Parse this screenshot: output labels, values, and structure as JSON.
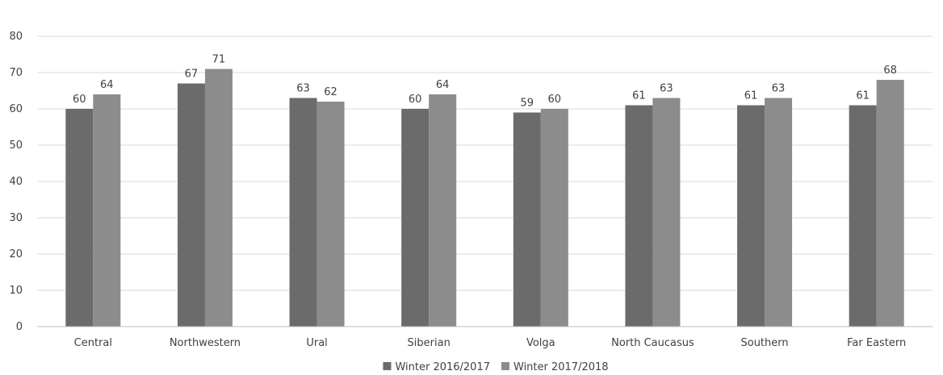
{
  "chart_data": {
    "type": "bar",
    "categories": [
      "Central",
      "Northwestern",
      "Ural",
      "Siberian",
      "Volga",
      "North Caucasus",
      "Southern",
      "Far Eastern"
    ],
    "series": [
      {
        "name": "Winter 2016/2017",
        "values": [
          60,
          67,
          63,
          60,
          59,
          61,
          61,
          61
        ],
        "color": "#6b6b6b"
      },
      {
        "name": "Winter 2017/2018",
        "values": [
          64,
          71,
          62,
          64,
          60,
          63,
          63,
          68
        ],
        "color": "#8c8c8c"
      }
    ],
    "title": "",
    "xlabel": "",
    "ylabel": "",
    "ylim": [
      0,
      80
    ],
    "yticks": [
      0,
      10,
      20,
      30,
      40,
      50,
      60,
      70,
      80
    ],
    "grid": true,
    "legend_position": "bottom-center",
    "colors": {
      "gridline": "#d9d9d9",
      "axis": "#bfbfbf",
      "text": "#404040"
    }
  }
}
